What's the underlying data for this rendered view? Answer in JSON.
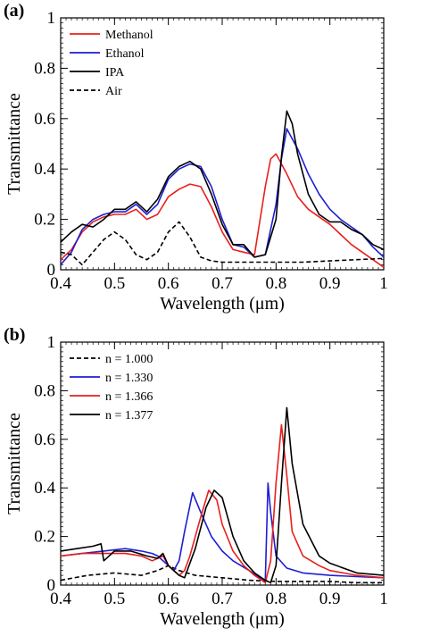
{
  "chart_data": [
    {
      "panel": "(a)",
      "type": "line",
      "xlabel": "Wavelength (μm)",
      "ylabel": "Transmittance",
      "xlim": [
        0.4,
        1.0
      ],
      "ylim": [
        0,
        1
      ],
      "x_ticks": [
        "0.4",
        "0.5",
        "0.6",
        "0.7",
        "0.8",
        "0.9",
        "1"
      ],
      "y_ticks": [
        "0",
        "0.2",
        "0.4",
        "0.6",
        "0.8",
        "1"
      ],
      "legend_position": "top-left",
      "series": [
        {
          "name": "Methanol",
          "color": "#e8201c",
          "dash": "solid",
          "x": [
            0.4,
            0.42,
            0.44,
            0.46,
            0.48,
            0.5,
            0.52,
            0.54,
            0.56,
            0.58,
            0.6,
            0.62,
            0.64,
            0.66,
            0.68,
            0.7,
            0.72,
            0.74,
            0.76,
            0.78,
            0.79,
            0.8,
            0.82,
            0.84,
            0.86,
            0.88,
            0.9,
            0.92,
            0.94,
            0.96,
            0.98,
            1.0
          ],
          "y": [
            0.04,
            0.08,
            0.15,
            0.19,
            0.21,
            0.22,
            0.22,
            0.24,
            0.2,
            0.22,
            0.29,
            0.32,
            0.34,
            0.33,
            0.25,
            0.15,
            0.08,
            0.07,
            0.06,
            0.33,
            0.44,
            0.46,
            0.38,
            0.29,
            0.24,
            0.21,
            0.18,
            0.14,
            0.1,
            0.07,
            0.04,
            0.01
          ]
        },
        {
          "name": "Ethanol",
          "color": "#1e1ed2",
          "dash": "solid",
          "x": [
            0.4,
            0.42,
            0.44,
            0.46,
            0.48,
            0.5,
            0.52,
            0.54,
            0.56,
            0.58,
            0.6,
            0.62,
            0.64,
            0.66,
            0.68,
            0.7,
            0.72,
            0.74,
            0.76,
            0.78,
            0.8,
            0.81,
            0.82,
            0.84,
            0.86,
            0.88,
            0.9,
            0.92,
            0.94,
            0.96,
            0.98,
            1.0
          ],
          "y": [
            0.02,
            0.07,
            0.16,
            0.2,
            0.22,
            0.23,
            0.23,
            0.26,
            0.22,
            0.26,
            0.36,
            0.4,
            0.42,
            0.41,
            0.33,
            0.2,
            0.1,
            0.09,
            0.05,
            0.06,
            0.26,
            0.44,
            0.56,
            0.48,
            0.38,
            0.3,
            0.24,
            0.2,
            0.17,
            0.14,
            0.09,
            0.05
          ]
        },
        {
          "name": "IPA",
          "color": "#000000",
          "dash": "solid",
          "x": [
            0.4,
            0.42,
            0.44,
            0.46,
            0.48,
            0.5,
            0.52,
            0.54,
            0.56,
            0.58,
            0.6,
            0.62,
            0.64,
            0.66,
            0.68,
            0.7,
            0.72,
            0.74,
            0.76,
            0.78,
            0.8,
            0.81,
            0.82,
            0.83,
            0.84,
            0.86,
            0.88,
            0.9,
            0.92,
            0.94,
            0.96,
            0.98,
            1.0
          ],
          "y": [
            0.11,
            0.15,
            0.18,
            0.17,
            0.2,
            0.24,
            0.24,
            0.27,
            0.23,
            0.28,
            0.37,
            0.41,
            0.43,
            0.4,
            0.3,
            0.18,
            0.1,
            0.1,
            0.05,
            0.06,
            0.2,
            0.45,
            0.63,
            0.58,
            0.46,
            0.3,
            0.22,
            0.19,
            0.19,
            0.16,
            0.14,
            0.1,
            0.08
          ]
        },
        {
          "name": "Air",
          "color": "#000000",
          "dash": "dashed",
          "x": [
            0.4,
            0.42,
            0.44,
            0.46,
            0.48,
            0.5,
            0.52,
            0.54,
            0.56,
            0.58,
            0.6,
            0.62,
            0.64,
            0.66,
            0.68,
            0.7,
            0.75,
            0.8,
            0.85,
            0.9,
            0.95,
            1.0
          ],
          "y": [
            0.07,
            0.06,
            0.02,
            0.07,
            0.12,
            0.15,
            0.12,
            0.06,
            0.04,
            0.07,
            0.15,
            0.19,
            0.13,
            0.05,
            0.035,
            0.03,
            0.03,
            0.03,
            0.03,
            0.035,
            0.04,
            0.045
          ]
        }
      ]
    },
    {
      "panel": "(b)",
      "type": "line",
      "xlabel": "Wavelength (μm)",
      "ylabel": "Transmittance",
      "xlim": [
        0.4,
        1.0
      ],
      "ylim": [
        0,
        1
      ],
      "x_ticks": [
        "0.4",
        "0.5",
        "0.6",
        "0.7",
        "0.8",
        "0.9",
        "1"
      ],
      "y_ticks": [
        "0",
        "0.2",
        "0.4",
        "0.6",
        "0.8",
        "1"
      ],
      "legend_position": "top-left",
      "series": [
        {
          "name": "n = 1.000",
          "color": "#000000",
          "dash": "dashed",
          "x": [
            0.4,
            0.45,
            0.5,
            0.55,
            0.58,
            0.6,
            0.62,
            0.65,
            0.7,
            0.75,
            0.8,
            0.85,
            0.9,
            0.95,
            1.0
          ],
          "y": [
            0.02,
            0.04,
            0.05,
            0.04,
            0.06,
            0.08,
            0.06,
            0.04,
            0.03,
            0.02,
            0.015,
            0.015,
            0.015,
            0.01,
            0.01
          ]
        },
        {
          "name": "n = 1.330",
          "color": "#1e1ed2",
          "dash": "solid",
          "x": [
            0.4,
            0.44,
            0.48,
            0.52,
            0.55,
            0.57,
            0.58,
            0.6,
            0.61,
            0.62,
            0.63,
            0.645,
            0.66,
            0.68,
            0.7,
            0.72,
            0.75,
            0.77,
            0.78,
            0.785,
            0.79,
            0.8,
            0.82,
            0.85,
            0.9,
            0.95,
            1.0
          ],
          "y": [
            0.12,
            0.13,
            0.14,
            0.15,
            0.14,
            0.13,
            0.12,
            0.08,
            0.06,
            0.1,
            0.22,
            0.38,
            0.3,
            0.2,
            0.14,
            0.1,
            0.06,
            0.03,
            0.02,
            0.42,
            0.3,
            0.12,
            0.07,
            0.05,
            0.04,
            0.035,
            0.03
          ]
        },
        {
          "name": "n = 1.366",
          "color": "#e8201c",
          "dash": "solid",
          "x": [
            0.4,
            0.44,
            0.48,
            0.52,
            0.55,
            0.57,
            0.59,
            0.6,
            0.62,
            0.63,
            0.64,
            0.66,
            0.675,
            0.69,
            0.7,
            0.72,
            0.74,
            0.76,
            0.78,
            0.79,
            0.8,
            0.81,
            0.82,
            0.83,
            0.85,
            0.88,
            0.9,
            0.95,
            1.0
          ],
          "y": [
            0.12,
            0.13,
            0.13,
            0.13,
            0.12,
            0.1,
            0.12,
            0.08,
            0.04,
            0.06,
            0.12,
            0.28,
            0.39,
            0.35,
            0.25,
            0.14,
            0.08,
            0.04,
            0.01,
            0.1,
            0.42,
            0.66,
            0.45,
            0.22,
            0.12,
            0.08,
            0.06,
            0.04,
            0.03
          ]
        },
        {
          "name": "n = 1.377",
          "color": "#000000",
          "dash": "solid",
          "x": [
            0.4,
            0.43,
            0.46,
            0.475,
            0.48,
            0.5,
            0.53,
            0.56,
            0.58,
            0.59,
            0.6,
            0.62,
            0.63,
            0.65,
            0.67,
            0.685,
            0.7,
            0.72,
            0.74,
            0.76,
            0.78,
            0.79,
            0.8,
            0.81,
            0.82,
            0.83,
            0.85,
            0.88,
            0.9,
            0.95,
            1.0
          ],
          "y": [
            0.14,
            0.15,
            0.16,
            0.17,
            0.1,
            0.14,
            0.14,
            0.12,
            0.11,
            0.13,
            0.08,
            0.04,
            0.03,
            0.15,
            0.32,
            0.39,
            0.36,
            0.2,
            0.1,
            0.05,
            0.02,
            0.01,
            0.08,
            0.42,
            0.73,
            0.5,
            0.25,
            0.12,
            0.09,
            0.05,
            0.04
          ]
        }
      ]
    }
  ]
}
